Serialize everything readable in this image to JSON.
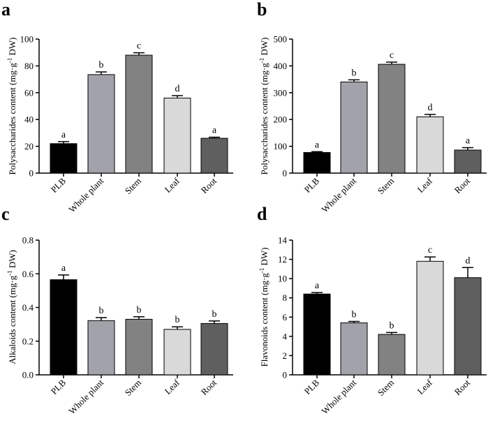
{
  "chart_data": [
    {
      "panel": "a",
      "type": "bar",
      "categories": [
        "PLB",
        "Whole plant",
        "Stem",
        "Leaf",
        "Root"
      ],
      "values": [
        22,
        73.5,
        88,
        56,
        26
      ],
      "errors": [
        1.5,
        2,
        1.8,
        1.8,
        0.8
      ],
      "significance": [
        "a",
        "b",
        "c",
        "d",
        "a"
      ],
      "colors": [
        "#000000",
        "#a2a2aa",
        "#828282",
        "#d9d9d9",
        "#5f5f5f"
      ],
      "ylabel_parts": [
        "Polysaccharides content (mg·g",
        "-1",
        " DW)"
      ],
      "ylim": [
        0,
        100
      ],
      "yticks": [
        "0",
        "20",
        "40",
        "60",
        "80",
        "100"
      ]
    },
    {
      "panel": "b",
      "type": "bar",
      "categories": [
        "PLB",
        "Whole plant",
        "Stem",
        "Leaf",
        "Root"
      ],
      "values": [
        77,
        340,
        406,
        210,
        86
      ],
      "errors": [
        3,
        8,
        8,
        9,
        9
      ],
      "significance": [
        "a",
        "b",
        "c",
        "d",
        "a"
      ],
      "colors": [
        "#000000",
        "#a2a2aa",
        "#828282",
        "#d9d9d9",
        "#5f5f5f"
      ],
      "ylabel_parts": [
        "Polysaccharides content (mg·g",
        "-1",
        " DW)"
      ],
      "ylim": [
        0,
        500
      ],
      "yticks": [
        "0",
        "100",
        "200",
        "300",
        "400",
        "500"
      ]
    },
    {
      "panel": "c",
      "type": "bar",
      "categories": [
        "PLB",
        "Whole plant",
        "Stem",
        "Leaf",
        "Root"
      ],
      "values": [
        0.565,
        0.322,
        0.33,
        0.27,
        0.305
      ],
      "errors": [
        0.028,
        0.018,
        0.015,
        0.015,
        0.015
      ],
      "significance": [
        "a",
        "b",
        "b",
        "b",
        "b"
      ],
      "colors": [
        "#000000",
        "#a2a2aa",
        "#828282",
        "#d9d9d9",
        "#5f5f5f"
      ],
      "ylabel_parts": [
        "Alkaloids content (mg·g",
        "-1",
        " DW)"
      ],
      "ylim": [
        0,
        0.8
      ],
      "yticks": [
        "0.0",
        "0.2",
        "0.4",
        "0.6",
        "0.8"
      ]
    },
    {
      "panel": "d",
      "type": "bar",
      "categories": [
        "PLB",
        "Whole plant",
        "Stem",
        "Leaf",
        "Root"
      ],
      "values": [
        8.4,
        5.4,
        4.2,
        11.8,
        10.1
      ],
      "errors": [
        0.15,
        0.15,
        0.2,
        0.45,
        1.05
      ],
      "significance": [
        "a",
        "b",
        "b",
        "c",
        "d"
      ],
      "colors": [
        "#000000",
        "#a2a2aa",
        "#828282",
        "#d9d9d9",
        "#5f5f5f"
      ],
      "ylabel_parts": [
        "Flavonoids content (mg·g",
        "-1",
        " DW)"
      ],
      "ylim": [
        0,
        14
      ],
      "yticks": [
        "0",
        "2",
        "4",
        "6",
        "8",
        "10",
        "12",
        "14"
      ]
    }
  ]
}
